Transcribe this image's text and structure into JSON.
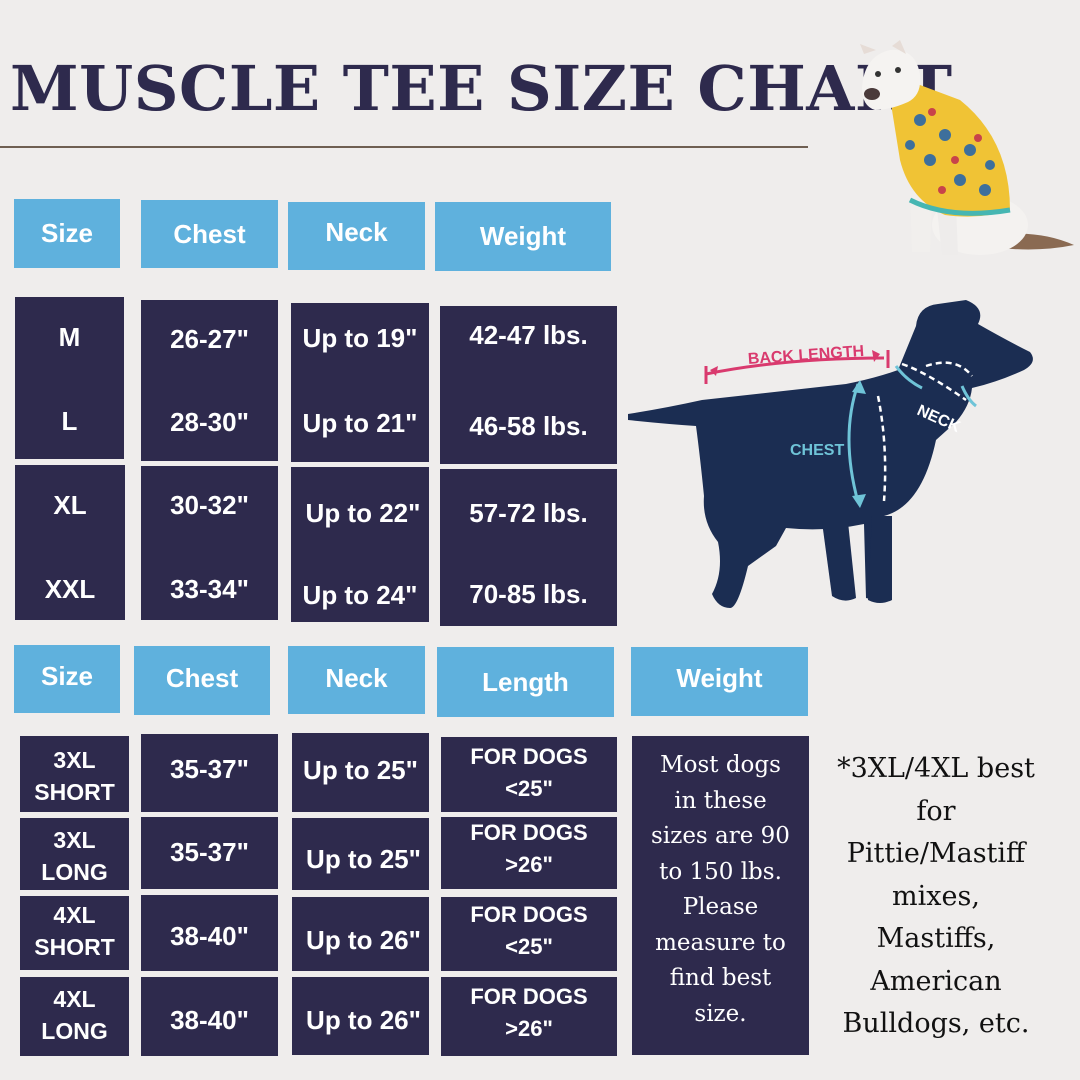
{
  "title": "MUSCLE TEE SIZE CHART",
  "table1": {
    "headers": [
      "Size",
      "Chest",
      "Neck",
      "Weight"
    ],
    "rows": [
      {
        "size": "M",
        "chest": "26-27\"",
        "neck": "Up to 19\"",
        "weight": "42-47 lbs."
      },
      {
        "size": "L",
        "chest": "28-30\"",
        "neck": "Up to 21\"",
        "weight": "46-58 lbs."
      },
      {
        "size": "XL",
        "chest": "30-32\"",
        "neck": "Up to 22\"",
        "weight": "57-72 lbs."
      },
      {
        "size": "XXL",
        "chest": "33-34\"",
        "neck": "Up to 24\"",
        "weight": "70-85 lbs."
      }
    ]
  },
  "table2": {
    "headers": [
      "Size",
      "Chest",
      "Neck",
      "Length",
      "Weight"
    ],
    "rows": [
      {
        "size_line1": "3XL",
        "size_line2": "SHORT",
        "chest": "35-37\"",
        "neck": "Up to 25\"",
        "length_line1": "FOR DOGS",
        "length_line2": "<25\""
      },
      {
        "size_line1": "3XL",
        "size_line2": "LONG",
        "chest": "35-37\"",
        "neck": "Up to 25\"",
        "length_line1": "FOR DOGS",
        "length_line2": ">26\""
      },
      {
        "size_line1": "4XL",
        "size_line2": "SHORT",
        "chest": "38-40\"",
        "neck": "Up to 26\"",
        "length_line1": "FOR DOGS",
        "length_line2": "<25\""
      },
      {
        "size_line1": "4XL",
        "size_line2": "LONG",
        "chest": "38-40\"",
        "neck": "Up to 26\"",
        "length_line1": "FOR DOGS",
        "length_line2": ">26\""
      }
    ],
    "weight_note_lines": [
      "Most dogs",
      "in these",
      "sizes are 90",
      "to 150 lbs.",
      "Please",
      "measure to",
      "find best",
      "size."
    ]
  },
  "side_note_lines": [
    "*3XL/4XL best",
    "for",
    "Pittie/Mastiff",
    "mixes,",
    "Mastiffs,",
    "American",
    "Bulldogs, etc."
  ],
  "diagram": {
    "back_length": "BACK LENGTH",
    "neck": "NECK",
    "chest": "CHEST"
  },
  "colors": {
    "navy": "#2e2a4d",
    "header_blue": "#5fb1dd",
    "background": "#efedec",
    "pink": "#d93a6e",
    "teal": "#6fc4d8"
  }
}
